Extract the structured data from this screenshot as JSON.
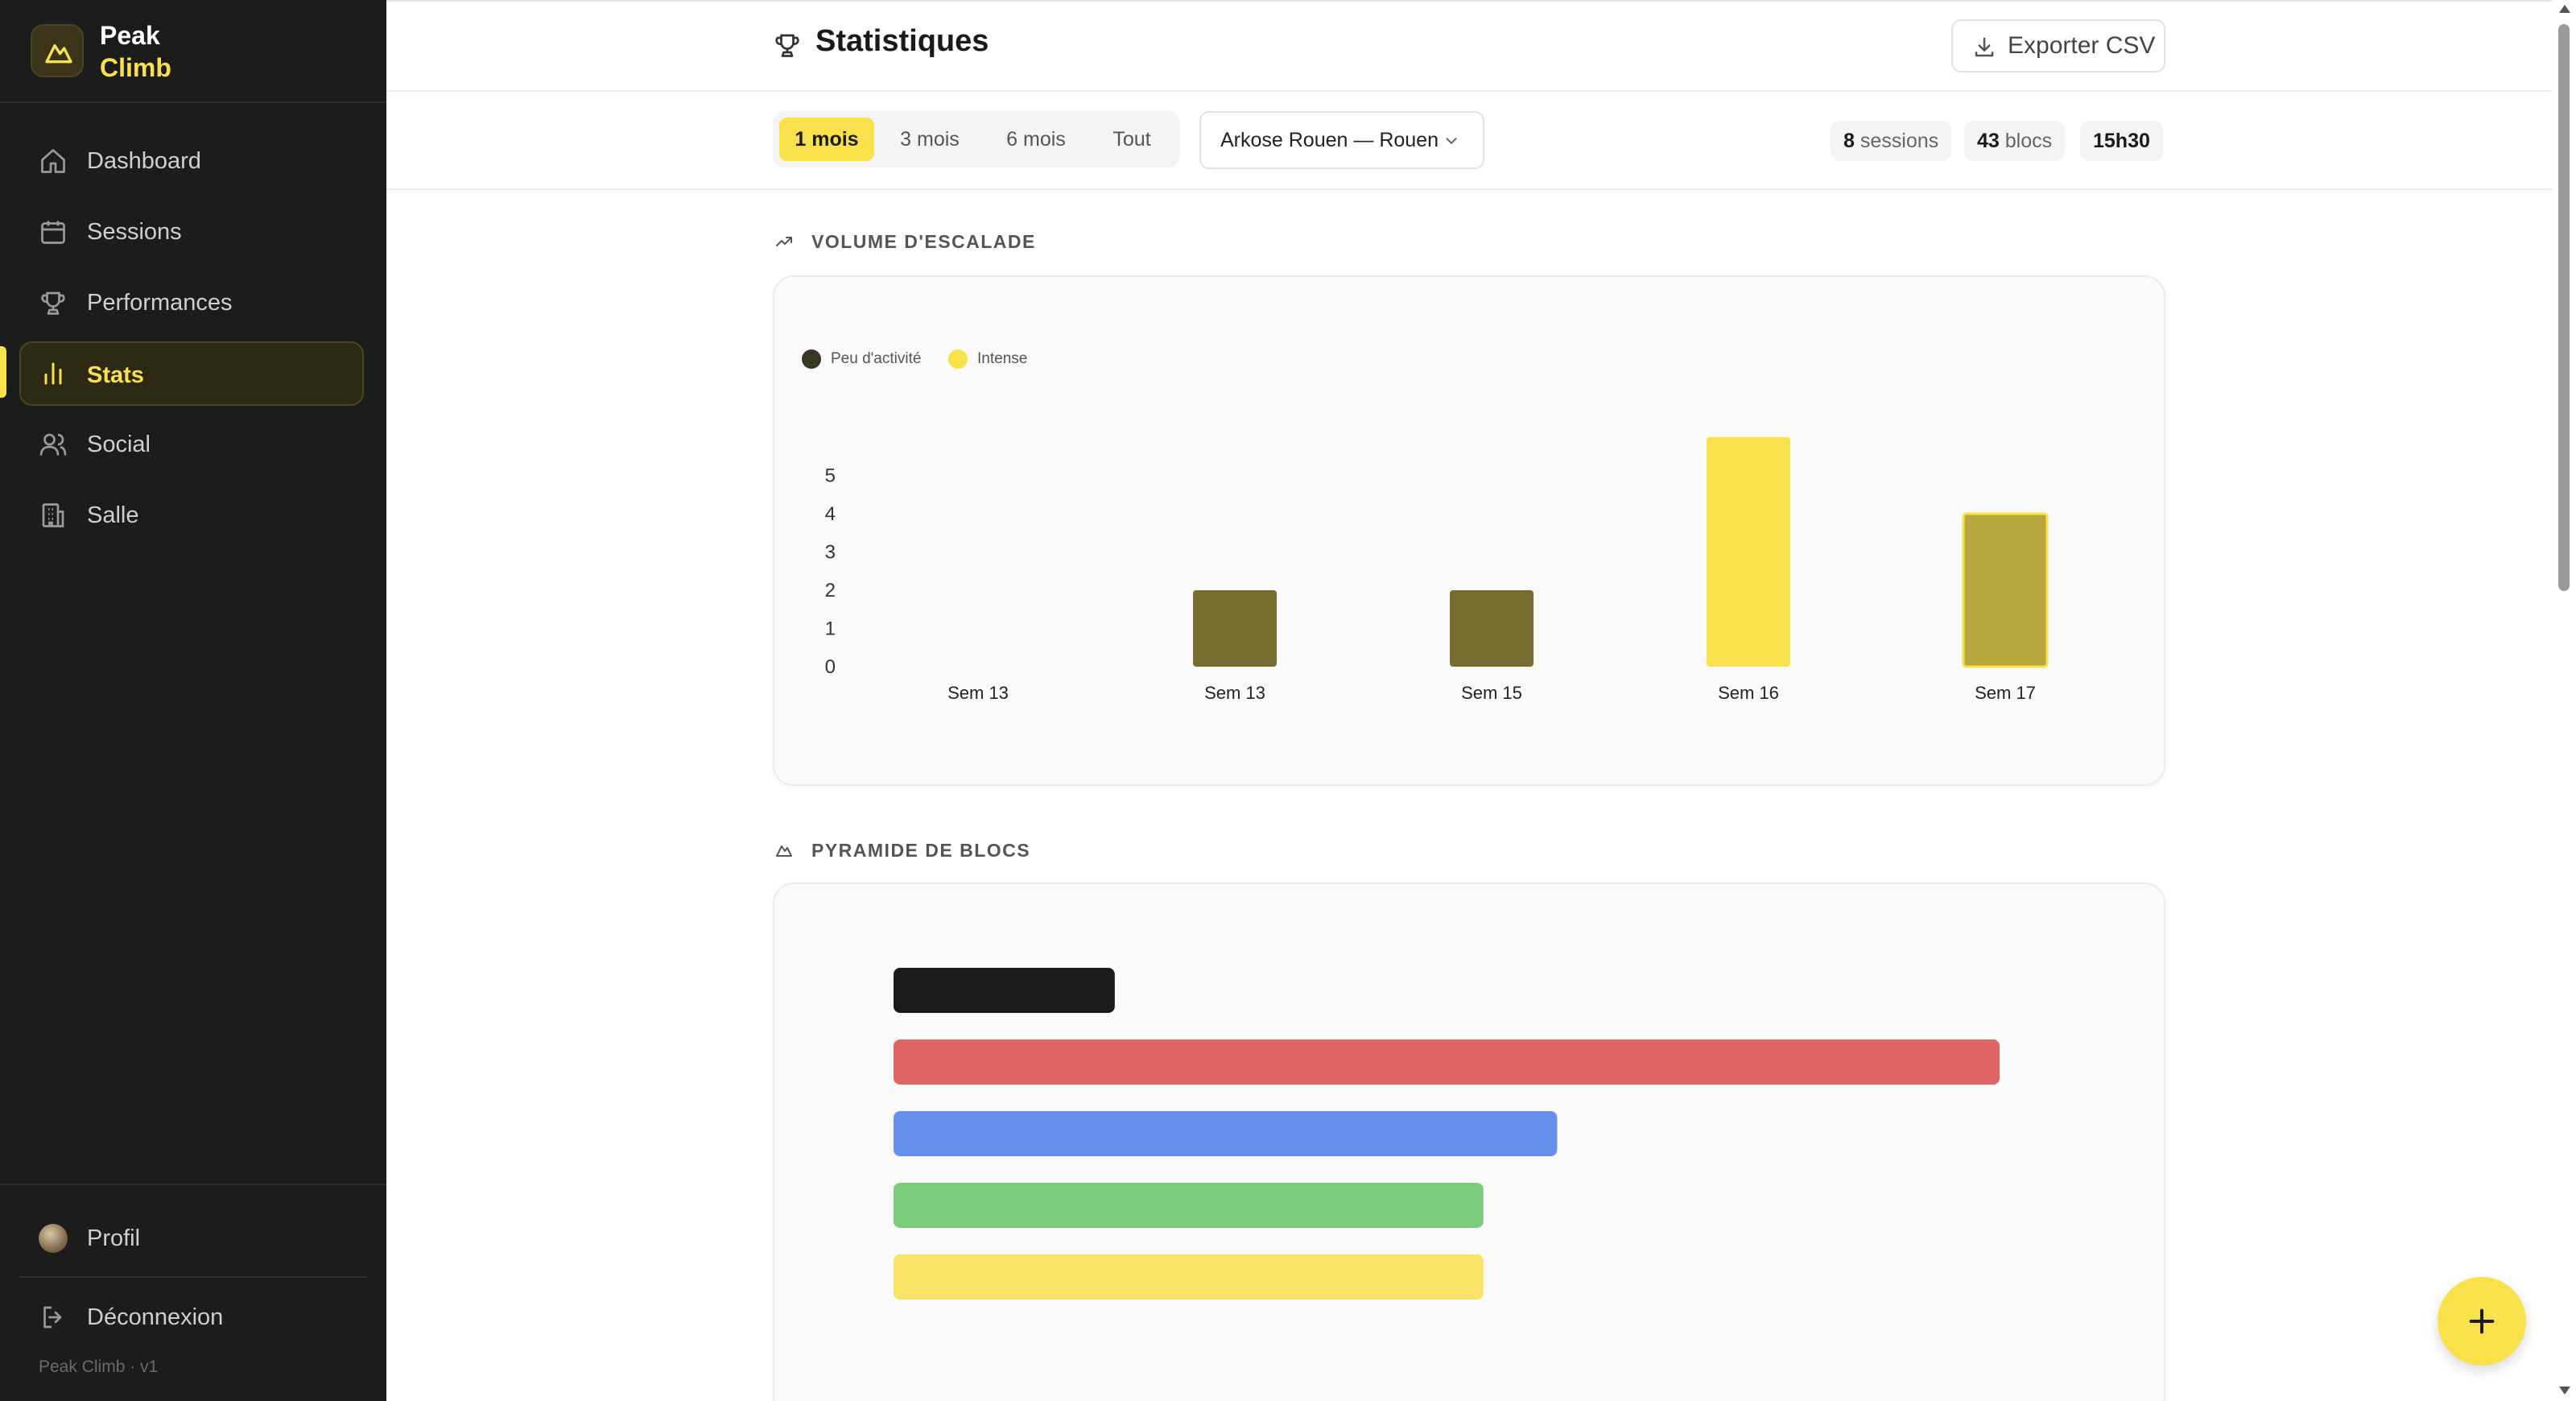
{
  "brand": {
    "line1": "Peak",
    "line2": "Climb"
  },
  "sidebar": {
    "items": [
      {
        "label": "Dashboard",
        "icon": "home-icon"
      },
      {
        "label": "Sessions",
        "icon": "calendar-icon"
      },
      {
        "label": "Performances",
        "icon": "trophy-icon"
      },
      {
        "label": "Stats",
        "icon": "bar-chart-icon",
        "active": true
      },
      {
        "label": "Social",
        "icon": "users-icon"
      },
      {
        "label": "Salle",
        "icon": "building-icon"
      }
    ],
    "profile_label": "Profil",
    "logout_label": "Déconnexion",
    "version": "Peak Climb · v1"
  },
  "header": {
    "title": "Statistiques",
    "export_label": "Exporter CSV"
  },
  "filters": {
    "periods": [
      "1 mois",
      "3 mois",
      "6 mois",
      "Tout"
    ],
    "active_period": "1 mois",
    "gym": "Arkose Rouen — Rouen",
    "stats": {
      "sessions_value": "8",
      "sessions_label": "sessions",
      "blocs_value": "43",
      "blocs_label": "blocs",
      "duration": "15h30"
    }
  },
  "volume": {
    "heading": "VOLUME D'ESCALADE",
    "legend": [
      {
        "label": "Peu d'activité",
        "color": "#3a3624"
      },
      {
        "label": "Intense",
        "color": "#f9e14b"
      }
    ]
  },
  "pyramid": {
    "heading": "PYRAMIDE DE BLOCS"
  },
  "chart_data": [
    {
      "type": "bar",
      "categories": [
        "Sem 13",
        "Sem 13",
        "Sem 15",
        "Sem 16",
        "Sem 17"
      ],
      "values": [
        0,
        2,
        2,
        6,
        4
      ],
      "colors": [
        "#776d2e",
        "#776d2e",
        "#776d2e",
        "#f9e14b",
        "#b8a73c"
      ],
      "yticks": [
        0,
        1,
        2,
        3,
        4,
        5
      ],
      "ylim": [
        0,
        6
      ],
      "title": "VOLUME D'ESCALADE"
    },
    {
      "type": "bar",
      "orientation": "horizontal",
      "values": [
        3,
        15,
        9,
        8,
        8
      ],
      "colors": [
        "#1a1a1a",
        "#df6464",
        "#6790ec",
        "#7acb7a",
        "#f8e366"
      ],
      "xlim": [
        0,
        15
      ],
      "title": "PYRAMIDE DE BLOCS"
    }
  ],
  "colors": {
    "accent": "#f9e14b",
    "sidebar_bg": "#1c1c1c"
  }
}
